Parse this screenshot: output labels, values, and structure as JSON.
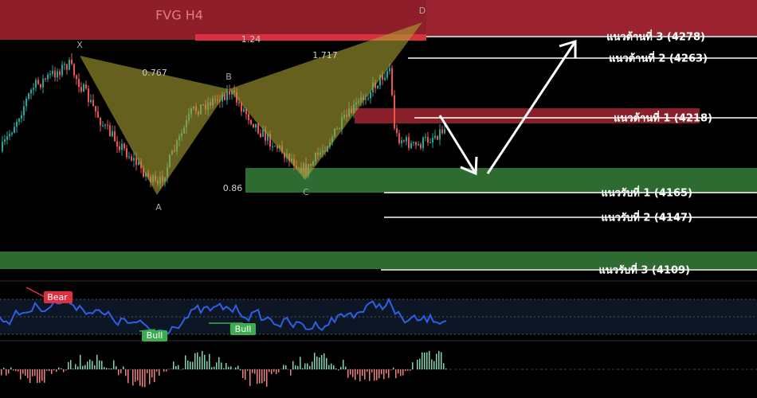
{
  "fvg_label": "FVG H4",
  "pattern": {
    "points": [
      "X",
      "A",
      "B",
      "C",
      "D"
    ],
    "ratios": [
      "0.767",
      "1.24",
      "1.717",
      "0.86"
    ]
  },
  "levels": {
    "resistance": [
      "แนวต้านที่ 3 (4278)",
      "แนวต้านที่ 2 (4263)",
      "แนวต้านที่ 1 (4218)"
    ],
    "support": [
      "แนวรับที่ 1 (4165)",
      "แนวรับที่ 2 (4147)",
      "แนวรับที่ 3 (4109)"
    ]
  },
  "oscillator": {
    "signals": [
      "Bear",
      "Bull",
      "Bull"
    ]
  }
}
